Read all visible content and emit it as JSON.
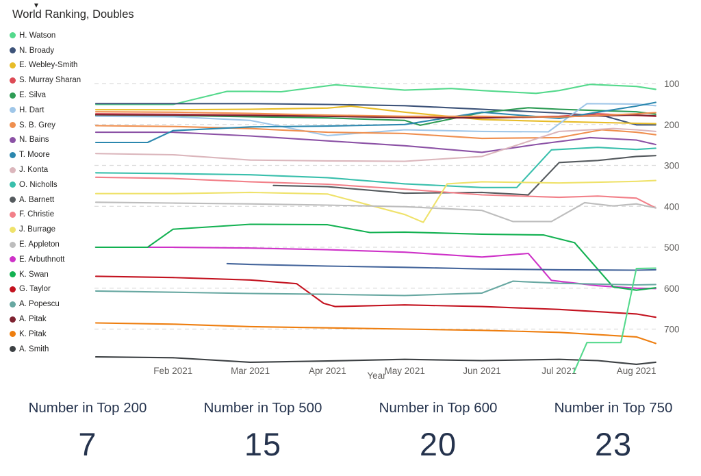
{
  "title": "World Ranking, Doubles",
  "legend": {
    "more_icon": "▼"
  },
  "xaxis": {
    "label": "Year"
  },
  "chart_data": {
    "type": "line",
    "title": "World Ranking, Doubles",
    "xlabel": "Year",
    "ylabel": "",
    "y_ticks": [
      100,
      200,
      300,
      400,
      500,
      600,
      700
    ],
    "y_axis_side": "right",
    "y_inverted": true,
    "ylim": [
      60,
      820
    ],
    "grid": "dashed-horizontal",
    "legend_position": "left",
    "x_unit": "months since mid-Jan 2021",
    "x_ticks": [
      {
        "m": 1,
        "label": "Feb 2021"
      },
      {
        "m": 2,
        "label": "Mar 2021"
      },
      {
        "m": 3,
        "label": "Apr 2021"
      },
      {
        "m": 4,
        "label": "May 2021"
      },
      {
        "m": 5,
        "label": "Jun 2021"
      },
      {
        "m": 6,
        "label": "Jul 2021"
      },
      {
        "m": 7,
        "label": "Aug 2021"
      }
    ],
    "series": [
      {
        "name": "H. Watson",
        "color": "#54D98C",
        "points": [
          [
            0,
            151
          ],
          [
            1,
            151
          ],
          [
            1.7,
            119
          ],
          [
            2,
            119
          ],
          [
            2.4,
            120
          ],
          [
            3.1,
            103
          ],
          [
            4,
            116
          ],
          [
            4.6,
            112
          ],
          [
            5,
            117
          ],
          [
            5.7,
            124
          ],
          [
            6,
            117
          ],
          [
            6.4,
            102
          ],
          [
            7,
            107
          ],
          [
            7.25,
            114
          ]
        ]
      },
      {
        "name": "N. Broady",
        "color": "#3D5379",
        "points": [
          [
            0,
            149
          ],
          [
            1,
            149
          ],
          [
            2,
            149
          ],
          [
            3,
            151
          ],
          [
            4,
            154
          ],
          [
            5,
            163
          ],
          [
            6,
            172
          ],
          [
            6.6,
            180
          ],
          [
            7,
            201
          ],
          [
            7.25,
            201
          ]
        ]
      },
      {
        "name": "E. Webley-Smith",
        "color": "#E7BC29",
        "points": [
          [
            0,
            164
          ],
          [
            1,
            164
          ],
          [
            2,
            163
          ],
          [
            3,
            160
          ],
          [
            3.3,
            155
          ],
          [
            4,
            170
          ],
          [
            5,
            188
          ],
          [
            6,
            193
          ],
          [
            7,
            197
          ],
          [
            7.25,
            198
          ]
        ]
      },
      {
        "name": "S. Murray Sharan",
        "color": "#DD4A55",
        "points": [
          [
            0,
            174
          ],
          [
            1,
            175
          ],
          [
            2,
            177
          ],
          [
            3,
            179
          ],
          [
            4,
            181
          ],
          [
            5,
            182
          ],
          [
            6,
            180
          ],
          [
            6.5,
            174
          ],
          [
            7,
            178
          ],
          [
            7.25,
            180
          ]
        ]
      },
      {
        "name": "E. Silva",
        "color": "#2E9C55",
        "points": [
          [
            0,
            178
          ],
          [
            1,
            178
          ],
          [
            2,
            181
          ],
          [
            3,
            184
          ],
          [
            4,
            190
          ],
          [
            4.2,
            202
          ],
          [
            5,
            171
          ],
          [
            5.6,
            159
          ],
          [
            6,
            163
          ],
          [
            7,
            169
          ],
          [
            7.25,
            175
          ]
        ]
      },
      {
        "name": "H. Dart",
        "color": "#9FC6E8",
        "points": [
          [
            0,
            180
          ],
          [
            1,
            181
          ],
          [
            2,
            190
          ],
          [
            3,
            227
          ],
          [
            4,
            213
          ],
          [
            5,
            217
          ],
          [
            5.86,
            218
          ],
          [
            6.36,
            149
          ],
          [
            7,
            150
          ],
          [
            7.25,
            154
          ]
        ]
      },
      {
        "name": "S. B. Grey",
        "color": "#EF8F4F",
        "points": [
          [
            0,
            203
          ],
          [
            1,
            205
          ],
          [
            2,
            210
          ],
          [
            3,
            219
          ],
          [
            4,
            222
          ],
          [
            5,
            234
          ],
          [
            6,
            232
          ],
          [
            6.55,
            213
          ],
          [
            7,
            219
          ],
          [
            7.25,
            225
          ]
        ]
      },
      {
        "name": "N. Bains",
        "color": "#8B51A5",
        "points": [
          [
            0,
            219
          ],
          [
            1,
            219
          ],
          [
            2,
            228
          ],
          [
            3,
            240
          ],
          [
            4,
            252
          ],
          [
            5,
            268
          ],
          [
            5.7,
            249
          ],
          [
            6.4,
            232
          ],
          [
            7,
            238
          ],
          [
            7.25,
            249
          ]
        ]
      },
      {
        "name": "T. Moore",
        "color": "#2B87AE",
        "points": [
          [
            0,
            244
          ],
          [
            0.67,
            244
          ],
          [
            1,
            215
          ],
          [
            2,
            206
          ],
          [
            3,
            204
          ],
          [
            4,
            200
          ],
          [
            5,
            170
          ],
          [
            6,
            185
          ],
          [
            7,
            155
          ],
          [
            7.25,
            146
          ]
        ]
      },
      {
        "name": "J. Konta",
        "color": "#DBB6BC",
        "points": [
          [
            0,
            271
          ],
          [
            1,
            274
          ],
          [
            2,
            287
          ],
          [
            3,
            289
          ],
          [
            4,
            290
          ],
          [
            5,
            278
          ],
          [
            6,
            217
          ],
          [
            6.7,
            210
          ],
          [
            7,
            213
          ],
          [
            7.25,
            217
          ]
        ]
      },
      {
        "name": "O. Nicholls",
        "color": "#39BFAC",
        "points": [
          [
            0,
            318
          ],
          [
            1,
            320
          ],
          [
            2,
            323
          ],
          [
            3,
            330
          ],
          [
            4,
            345
          ],
          [
            5,
            354
          ],
          [
            5.45,
            354
          ],
          [
            5.9,
            262
          ],
          [
            6.5,
            256
          ],
          [
            7,
            261
          ],
          [
            7.25,
            258
          ]
        ]
      },
      {
        "name": "A. Barnett",
        "color": "#555A5E",
        "points": [
          [
            2.3,
            349
          ],
          [
            3,
            352
          ],
          [
            4,
            368
          ],
          [
            5,
            366
          ],
          [
            5.6,
            372
          ],
          [
            6,
            293
          ],
          [
            6.5,
            288
          ],
          [
            7,
            278
          ],
          [
            7.25,
            276
          ]
        ]
      },
      {
        "name": "F. Christie",
        "color": "#F28089",
        "points": [
          [
            0,
            329
          ],
          [
            1,
            332
          ],
          [
            2,
            340
          ],
          [
            3,
            346
          ],
          [
            4,
            358
          ],
          [
            5,
            372
          ],
          [
            6,
            378
          ],
          [
            6.5,
            375
          ],
          [
            7,
            380
          ],
          [
            7.25,
            404
          ]
        ]
      },
      {
        "name": "J. Burrage",
        "color": "#EFE26B",
        "points": [
          [
            0,
            369
          ],
          [
            1,
            369
          ],
          [
            2,
            366
          ],
          [
            3,
            370
          ],
          [
            4,
            420
          ],
          [
            4.24,
            439
          ],
          [
            4.55,
            345
          ],
          [
            5,
            340
          ],
          [
            6,
            343
          ],
          [
            7,
            339
          ],
          [
            7.25,
            337
          ]
        ]
      },
      {
        "name": "E. Appleton",
        "color": "#BDBDBD",
        "points": [
          [
            0,
            390
          ],
          [
            1,
            392
          ],
          [
            2,
            394
          ],
          [
            3,
            397
          ],
          [
            4,
            401
          ],
          [
            5,
            410
          ],
          [
            5.4,
            437
          ],
          [
            5.9,
            437
          ],
          [
            6.33,
            391
          ],
          [
            6.7,
            399
          ],
          [
            7,
            394
          ],
          [
            7.25,
            404
          ]
        ]
      },
      {
        "name": "E. Arbuthnott",
        "color": "#CE32C8",
        "points": [
          [
            0,
            500
          ],
          [
            1,
            500
          ],
          [
            2,
            502
          ],
          [
            3,
            506
          ],
          [
            4,
            512
          ],
          [
            5,
            524
          ],
          [
            5.6,
            515
          ],
          [
            5.9,
            581
          ],
          [
            6.5,
            594
          ],
          [
            7,
            600
          ],
          [
            7.25,
            601
          ]
        ]
      },
      {
        "name": "K. Swan",
        "color": "#12B151",
        "points": [
          [
            0,
            500
          ],
          [
            0.67,
            500
          ],
          [
            1,
            456
          ],
          [
            2,
            444
          ],
          [
            3,
            445
          ],
          [
            3.55,
            464
          ],
          [
            4,
            463
          ],
          [
            5,
            468
          ],
          [
            5.8,
            470
          ],
          [
            6.2,
            489
          ],
          [
            6.7,
            597
          ],
          [
            7,
            605
          ],
          [
            7.25,
            599
          ]
        ]
      },
      {
        "name": "G. Taylor",
        "color": "#C3121F",
        "points": [
          [
            0,
            571
          ],
          [
            1,
            574
          ],
          [
            2,
            580
          ],
          [
            2.6,
            589
          ],
          [
            2.95,
            637
          ],
          [
            3.1,
            645
          ],
          [
            4,
            641
          ],
          [
            5,
            645
          ],
          [
            6,
            652
          ],
          [
            7,
            663
          ],
          [
            7.25,
            671
          ]
        ]
      },
      {
        "name": "A. Popescu",
        "color": "#68A8A2",
        "points": [
          [
            0,
            607
          ],
          [
            1,
            610
          ],
          [
            2,
            613
          ],
          [
            3,
            615
          ],
          [
            4,
            618
          ],
          [
            5,
            612
          ],
          [
            5.4,
            583
          ],
          [
            6,
            588
          ],
          [
            7,
            592
          ],
          [
            7.25,
            591
          ]
        ]
      },
      {
        "name": "A. Pitak",
        "color": "#7E2230",
        "points": [
          [
            0,
            176
          ],
          [
            1,
            177
          ],
          [
            2,
            178
          ],
          [
            3,
            180
          ],
          [
            4,
            183
          ],
          [
            5,
            184
          ],
          [
            6,
            181
          ],
          [
            7,
            177
          ],
          [
            7.25,
            179
          ]
        ]
      },
      {
        "name": "K. Pitak",
        "color": "#EE7E0F",
        "points": [
          [
            0,
            685
          ],
          [
            1,
            688
          ],
          [
            2,
            694
          ],
          [
            3,
            697
          ],
          [
            4,
            700
          ],
          [
            5,
            703
          ],
          [
            6,
            708
          ],
          [
            7,
            719
          ],
          [
            7.25,
            735
          ]
        ]
      },
      {
        "name": "A. Smith",
        "color": "#3C4043",
        "points": [
          [
            0,
            768
          ],
          [
            1,
            770
          ],
          [
            2,
            781
          ],
          [
            3,
            778
          ],
          [
            4,
            774
          ],
          [
            5,
            777
          ],
          [
            6,
            774
          ],
          [
            6.5,
            777
          ],
          [
            7,
            786
          ],
          [
            7.25,
            781
          ]
        ]
      },
      {
        "name": "",
        "hidden": true,
        "color": "#44659B",
        "points": [
          [
            1.7,
            540
          ],
          [
            2,
            542
          ],
          [
            3,
            546
          ],
          [
            4,
            549
          ],
          [
            5,
            553
          ],
          [
            6,
            555
          ],
          [
            7,
            556
          ],
          [
            7.25,
            555
          ]
        ]
      },
      {
        "name": "",
        "hidden": true,
        "color": "#54D98C",
        "points": [
          [
            6.19,
            806
          ],
          [
            6.36,
            733
          ],
          [
            6.8,
            733
          ],
          [
            7,
            552
          ],
          [
            7.25,
            551
          ]
        ]
      },
      {
        "name": "",
        "hidden": true,
        "color": "#EF8F4F",
        "points": [
          [
            0,
            169
          ],
          [
            1,
            170
          ],
          [
            2,
            173
          ],
          [
            3,
            177
          ],
          [
            4,
            180
          ],
          [
            5,
            180
          ],
          [
            6,
            182
          ],
          [
            7,
            174
          ],
          [
            7.25,
            171
          ]
        ]
      }
    ]
  },
  "kpis": [
    {
      "label": "Number in Top 200",
      "value": "7"
    },
    {
      "label": "Number in Top 500",
      "value": "15"
    },
    {
      "label": "Number in Top 600",
      "value": "20"
    },
    {
      "label": "Number in Top 750",
      "value": "23"
    }
  ]
}
